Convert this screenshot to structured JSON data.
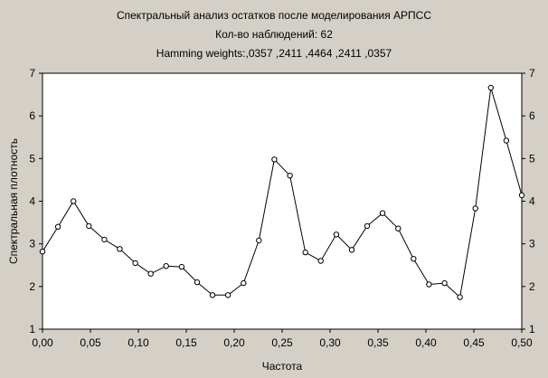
{
  "chart_data": {
    "type": "line",
    "title": "Спектральный анализ остатков после моделирования АРПСС",
    "subtitle_lines": [
      "Кол-во наблюдений: 62",
      "Hamming weights:,0357 ,2411 ,4464 ,2411 ,0357"
    ],
    "xlabel": "Частота",
    "ylabel": "Спектральная плотность",
    "xlim": [
      0,
      0.5
    ],
    "ylim": [
      1,
      7
    ],
    "x_ticks": [
      0,
      0.05,
      0.1,
      0.15,
      0.2,
      0.25,
      0.3,
      0.35,
      0.4,
      0.45,
      0.5
    ],
    "x_tick_labels": [
      "0,00",
      "0,05",
      "0,10",
      "0,15",
      "0,20",
      "0,25",
      "0,30",
      "0,35",
      "0,40",
      "0,45",
      "0,50"
    ],
    "y_ticks": [
      1,
      2,
      3,
      4,
      5,
      6,
      7
    ],
    "y_tick_labels": [
      "1",
      "2",
      "3",
      "4",
      "5",
      "6",
      "7"
    ],
    "right_axis": true,
    "grid": false,
    "marker": "circle",
    "line_color": "#000000",
    "background_color": "#d4d0c8",
    "plot_background_color": "#ffffff",
    "series": [
      {
        "x": [
          0.0,
          0.0161,
          0.0323,
          0.0484,
          0.0645,
          0.0806,
          0.0968,
          0.1129,
          0.129,
          0.1452,
          0.1613,
          0.1774,
          0.1935,
          0.2097,
          0.2258,
          0.2419,
          0.2581,
          0.2742,
          0.2903,
          0.3065,
          0.3226,
          0.3387,
          0.3548,
          0.371,
          0.3871,
          0.4032,
          0.4194,
          0.4355,
          0.4516,
          0.4677,
          0.4839,
          0.5
        ],
        "y": [
          2.82,
          3.4,
          4.0,
          3.42,
          3.1,
          2.88,
          2.55,
          2.3,
          2.48,
          2.46,
          2.1,
          1.8,
          1.8,
          2.08,
          3.08,
          4.98,
          4.6,
          2.8,
          2.6,
          3.22,
          2.86,
          3.42,
          3.72,
          3.36,
          2.65,
          2.05,
          2.08,
          1.75,
          3.83,
          6.66,
          5.42,
          4.14
        ]
      }
    ]
  }
}
